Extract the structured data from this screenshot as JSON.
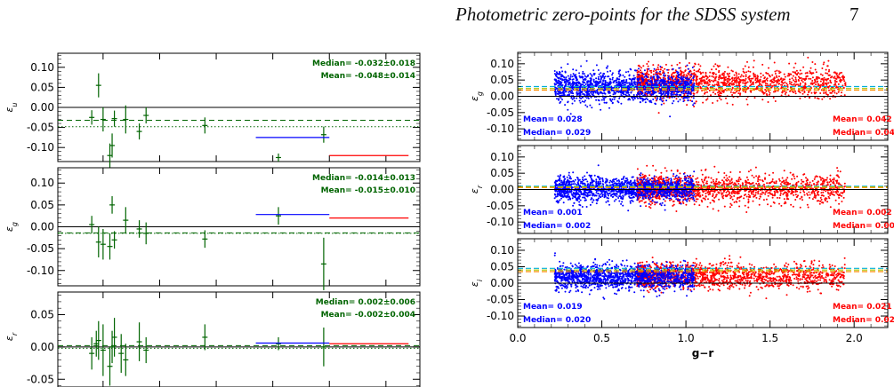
{
  "header": {
    "title": "Photometric zero-points for the SDSS system",
    "page_number": "7"
  },
  "colors": {
    "green": "#006400",
    "blue": "#0000ff",
    "red": "#ff0000",
    "cyan": "#00b0d8",
    "yellow_green": "#a8c800",
    "orange": "#ff8c00"
  },
  "chart_data": [
    {
      "type": "scatter",
      "ylabel": "εu",
      "ylim": [
        -0.135,
        0.135
      ],
      "yticks": [
        0.1,
        0.05,
        0.0,
        -0.05,
        -0.1
      ],
      "ytick_labels": [
        "0.10",
        "0.05",
        "0.00",
        "-0.05",
        "-0.10"
      ],
      "annotations": [
        "Median= -0.032±0.018",
        "Mean= -0.048±0.014"
      ],
      "median": -0.032,
      "mean": -0.048,
      "points": [
        {
          "x": 0.4,
          "y": -0.025,
          "err": 0.018
        },
        {
          "x": 0.46,
          "y": 0.055,
          "err": 0.03
        },
        {
          "x": 0.5,
          "y": -0.03,
          "err": 0.03
        },
        {
          "x": 0.56,
          "y": -0.12,
          "err": 0.03
        },
        {
          "x": 0.58,
          "y": -0.095,
          "err": 0.03
        },
        {
          "x": 0.6,
          "y": -0.028,
          "err": 0.02
        },
        {
          "x": 0.7,
          "y": -0.03,
          "err": 0.035
        },
        {
          "x": 0.82,
          "y": -0.06,
          "err": 0.02
        },
        {
          "x": 0.88,
          "y": -0.02,
          "err": 0.02
        },
        {
          "x": 1.4,
          "y": -0.045,
          "err": 0.02
        },
        {
          "x": 2.05,
          "y": -0.125,
          "err": 0.01
        },
        {
          "x": 2.45,
          "y": -0.068,
          "err": 0.02
        }
      ],
      "blue_segment": {
        "x": [
          1.85,
          2.5
        ],
        "y": -0.075
      },
      "red_segment": {
        "x": [
          2.5,
          3.2
        ],
        "y": -0.12
      }
    },
    {
      "type": "scatter",
      "ylabel": "εg",
      "ylim": [
        -0.135,
        0.135
      ],
      "yticks": [
        0.1,
        0.05,
        0.0,
        -0.05,
        -0.1
      ],
      "ytick_labels": [
        "0.10",
        "0.05",
        "0.00",
        "-0.05",
        "-0.10"
      ],
      "annotations": [
        "Median= -0.014±0.013",
        "Mean= -0.015±0.010"
      ],
      "median": -0.014,
      "mean": -0.015,
      "points": [
        {
          "x": 0.4,
          "y": 0.005,
          "err": 0.02
        },
        {
          "x": 0.46,
          "y": -0.035,
          "err": 0.035
        },
        {
          "x": 0.5,
          "y": -0.04,
          "err": 0.035
        },
        {
          "x": 0.56,
          "y": -0.045,
          "err": 0.03
        },
        {
          "x": 0.58,
          "y": 0.05,
          "err": 0.02
        },
        {
          "x": 0.6,
          "y": -0.03,
          "err": 0.02
        },
        {
          "x": 0.7,
          "y": 0.015,
          "err": 0.03
        },
        {
          "x": 0.82,
          "y": -0.005,
          "err": 0.02
        },
        {
          "x": 0.88,
          "y": -0.015,
          "err": 0.025
        },
        {
          "x": 1.4,
          "y": -0.028,
          "err": 0.02
        },
        {
          "x": 2.05,
          "y": 0.025,
          "err": 0.02
        },
        {
          "x": 2.45,
          "y": -0.085,
          "err": 0.06
        }
      ],
      "blue_segment": {
        "x": [
          1.85,
          2.5
        ],
        "y": 0.028
      },
      "red_segment": {
        "x": [
          2.5,
          3.2
        ],
        "y": 0.02
      }
    },
    {
      "type": "scatter",
      "ylabel": "εr",
      "ylim": [
        -0.062,
        0.085
      ],
      "yticks": [
        0.05,
        0.0,
        -0.05
      ],
      "ytick_labels": [
        "0.05",
        "0.00",
        "-0.05"
      ],
      "annotations": [
        "Median= 0.002±0.006",
        "Mean= -0.002±0.004"
      ],
      "median": 0.002,
      "mean": -0.002,
      "points": [
        {
          "x": 0.4,
          "y": -0.01,
          "err": 0.025
        },
        {
          "x": 0.44,
          "y": 0.005,
          "err": 0.02
        },
        {
          "x": 0.46,
          "y": 0.01,
          "err": 0.03
        },
        {
          "x": 0.5,
          "y": -0.005,
          "err": 0.04
        },
        {
          "x": 0.56,
          "y": -0.03,
          "err": 0.03
        },
        {
          "x": 0.58,
          "y": 0.0,
          "err": 0.025
        },
        {
          "x": 0.6,
          "y": 0.015,
          "err": 0.03
        },
        {
          "x": 0.66,
          "y": -0.01,
          "err": 0.03
        },
        {
          "x": 0.7,
          "y": -0.02,
          "err": 0.025
        },
        {
          "x": 0.82,
          "y": 0.008,
          "err": 0.03
        },
        {
          "x": 0.88,
          "y": -0.005,
          "err": 0.02
        },
        {
          "x": 1.4,
          "y": 0.015,
          "err": 0.02
        },
        {
          "x": 2.05,
          "y": 0.005,
          "err": 0.01
        },
        {
          "x": 2.45,
          "y": 0.0,
          "err": 0.03
        }
      ],
      "blue_segment": {
        "x": [
          1.85,
          2.5
        ],
        "y": 0.006
      },
      "red_segment": {
        "x": [
          2.5,
          3.2
        ],
        "y": 0.005
      }
    },
    {
      "type": "scatter",
      "ylabel": "εg",
      "xlim": [
        0.0,
        2.2
      ],
      "ylim": [
        -0.135,
        0.135
      ],
      "yticks": [
        0.1,
        0.05,
        0.0,
        -0.05,
        -0.1
      ],
      "ytick_labels": [
        "0.10",
        "0.05",
        "0.00",
        "-0.05",
        "-0.10"
      ],
      "blue_annotations": [
        "Mean= 0.028",
        "Median= 0.029"
      ],
      "red_annotations": [
        "Mean= 0.042",
        "Median= 0.045"
      ],
      "blue_mean": 0.028,
      "red_mean": 0.042,
      "guide_lines": {
        "cyan": 0.03,
        "yellow_green": 0.024,
        "orange": 0.019
      },
      "blue_cloud": {
        "x_range": [
          0.22,
          1.05
        ],
        "center": 0.028,
        "spread": 0.022,
        "n": 1400
      },
      "red_cloud": {
        "x_range": [
          0.4,
          1.95
        ],
        "center": 0.042,
        "spread": 0.022,
        "n": 1500
      }
    },
    {
      "type": "scatter",
      "ylabel": "εr",
      "xlim": [
        0.0,
        2.2
      ],
      "ylim": [
        -0.135,
        0.135
      ],
      "yticks": [
        0.1,
        0.05,
        0.0,
        -0.05,
        -0.1
      ],
      "ytick_labels": [
        "0.10",
        "0.05",
        "0.00",
        "-0.05",
        "-0.10"
      ],
      "blue_annotations": [
        "Mean= 0.001",
        "Median= 0.002"
      ],
      "red_annotations": [
        "Mean= 0.002",
        "Median= 0.003"
      ],
      "blue_mean": 0.001,
      "red_mean": 0.002,
      "guide_lines": {
        "cyan": 0.01,
        "yellow_green": 0.008,
        "orange": 0.006
      },
      "blue_cloud": {
        "x_range": [
          0.22,
          1.05
        ],
        "center": 0.001,
        "spread": 0.018,
        "n": 1400
      },
      "red_cloud": {
        "x_range": [
          0.4,
          1.95
        ],
        "center": 0.002,
        "spread": 0.02,
        "n": 1500
      }
    },
    {
      "type": "scatter",
      "ylabel": "εi",
      "xlabel": "g−r",
      "xlim": [
        0.0,
        2.2
      ],
      "ylim": [
        -0.135,
        0.135
      ],
      "xticks": [
        0.0,
        0.5,
        1.0,
        1.5,
        2.0
      ],
      "xtick_labels": [
        "0.0",
        "0.5",
        "1.0",
        "1.5",
        "2.0"
      ],
      "yticks": [
        0.1,
        0.05,
        0.0,
        -0.05,
        -0.1
      ],
      "ytick_labels": [
        "0.10",
        "0.05",
        "0.00",
        "-0.05",
        "-0.10"
      ],
      "blue_annotations": [
        "Mean= 0.019",
        "Median= 0.020"
      ],
      "red_annotations": [
        "Mean= 0.021",
        "Median= 0.022"
      ],
      "blue_mean": 0.019,
      "red_mean": 0.021,
      "guide_lines": {
        "cyan": 0.045,
        "yellow_green": 0.04,
        "orange": 0.035
      },
      "blue_cloud": {
        "x_range": [
          0.22,
          1.05
        ],
        "center": 0.019,
        "spread": 0.018,
        "n": 1400
      },
      "red_cloud": {
        "x_range": [
          0.4,
          1.95
        ],
        "center": 0.021,
        "spread": 0.018,
        "n": 1500
      }
    }
  ]
}
